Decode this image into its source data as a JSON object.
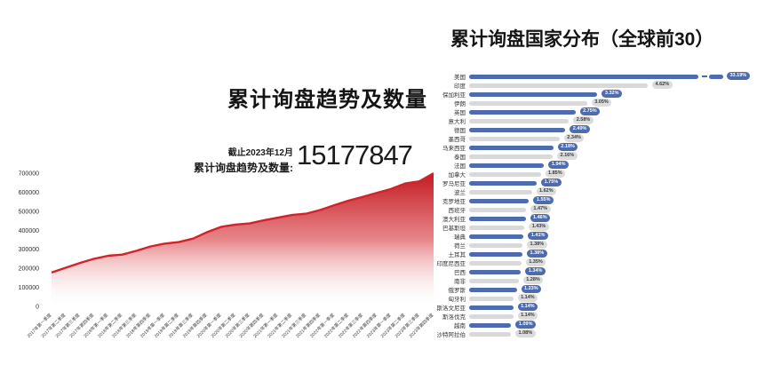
{
  "trend": {
    "title": "累计询盘趋势及数量",
    "as_of": "截止2023年12月",
    "total_label": "累计询盘趋势及数量:",
    "total_value": "15177847"
  },
  "country": {
    "title": "累计询盘国家分布（全球前30）"
  },
  "colors": {
    "area_red": "#d2232a",
    "area_red_dark": "#c11b22",
    "bar_blue": "#4d6cb0",
    "bar_gray": "#d9d9d9"
  },
  "chart_data": [
    {
      "type": "area",
      "title": "累计询盘趋势及数量",
      "subtitle": "截止2023年12月 累计询盘趋势及数量: 15177847",
      "xlabel": "",
      "ylabel": "",
      "ylim": [
        0,
        700000
      ],
      "yticks": [
        0,
        100000,
        200000,
        300000,
        400000,
        500000,
        600000,
        700000
      ],
      "grid": false,
      "x": [
        "2017年第一季度",
        "2017年第二季度",
        "2017年第三季度",
        "2017年第四季度",
        "2018年第一季度",
        "2018年第二季度",
        "2018年第三季度",
        "2018年第四季度",
        "2019年第一季度",
        "2019年第二季度",
        "2019年第三季度",
        "2019年第四季度",
        "2020年第一季度",
        "2020年第二季度",
        "2020年第三季度",
        "2020年第四季度",
        "2021年第一季度",
        "2021年第二季度",
        "2021年第三季度",
        "2021年第四季度",
        "2022年第一季度",
        "2022年第二季度",
        "2022年第三季度",
        "2022年第四季度",
        "2023年第一季度",
        "2023年第二季度",
        "2023年第三季度",
        "2023年第四季度"
      ],
      "values": [
        178000,
        203000,
        228000,
        250000,
        266000,
        272000,
        292000,
        315000,
        330000,
        338000,
        356000,
        390000,
        418000,
        430000,
        436000,
        452000,
        466000,
        480000,
        487000,
        507000,
        532000,
        556000,
        576000,
        597000,
        617000,
        646000,
        657000,
        700000
      ]
    },
    {
      "type": "bar",
      "orientation": "horizontal",
      "title": "累计询盘国家分布（全球前30）",
      "legend_position": "none",
      "axis_break_on_first": true,
      "categories": [
        "美国",
        "印度",
        "保加利亚",
        "伊朗",
        "英国",
        "意大利",
        "德国",
        "墨西哥",
        "马来西亚",
        "泰国",
        "法国",
        "加拿大",
        "罗马尼亚",
        "波兰",
        "克罗地亚",
        "西班牙",
        "澳大利亚",
        "巴基斯坦",
        "瑞典",
        "荷兰",
        "土耳其",
        "印度尼西亚",
        "巴西",
        "南非",
        "俄罗斯",
        "匈牙利",
        "斯洛文尼亚",
        "斯洛伐克",
        "越南",
        "沙特阿拉伯"
      ],
      "values": [
        33.19,
        4.62,
        3.32,
        3.05,
        2.75,
        2.58,
        2.49,
        2.34,
        2.18,
        2.16,
        1.94,
        1.85,
        1.75,
        1.62,
        1.55,
        1.47,
        1.46,
        1.43,
        1.41,
        1.38,
        1.38,
        1.35,
        1.34,
        1.28,
        1.23,
        1.14,
        1.14,
        1.14,
        1.09,
        1.08
      ],
      "labels": [
        "33.19%",
        "4.62%",
        "3.32%",
        "3.05%",
        "2.75%",
        "2.58%",
        "2.49%",
        "2.34%",
        "2.18%",
        "2.16%",
        "1.94%",
        "1.85%",
        "1.75%",
        "1.62%",
        "1.55%",
        "1.47%",
        "1.46%",
        "1.43%",
        "1.41%",
        "1.38%",
        "1.38%",
        "1.35%",
        "1.34%",
        "1.28%",
        "1.23%",
        "1.14%",
        "1.14%",
        "1.14%",
        "1.09%",
        "1.08%"
      ]
    }
  ]
}
